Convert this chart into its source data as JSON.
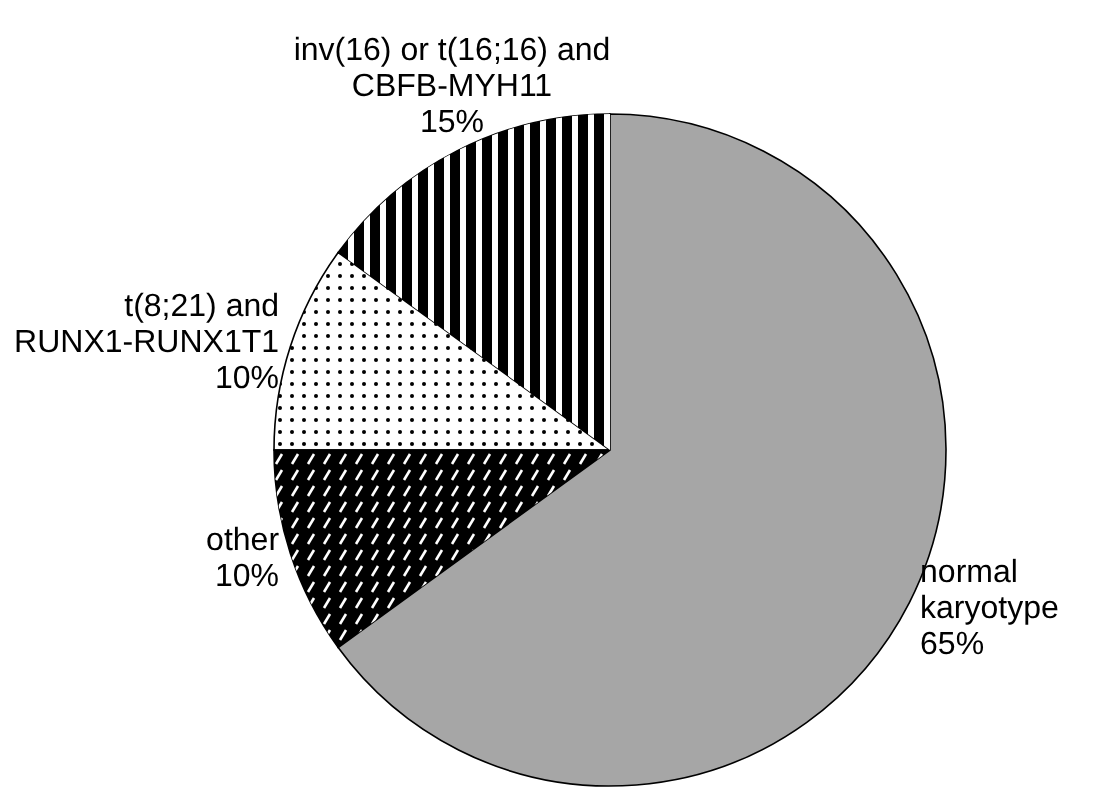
{
  "chart_data": {
    "type": "pie",
    "categories": [
      "inv(16) or t(16;16) and CBFB-MYH11",
      "t(8;21) and RUNX1-RUNX1T1",
      "other",
      "normal karyotype"
    ],
    "values": [
      15,
      10,
      10,
      65
    ],
    "colors": [
      "#000000",
      "#ffffff",
      "#000000",
      "#a6a6a6"
    ],
    "value_labels": [
      "15%",
      "10%",
      "10%",
      "65%"
    ]
  }
}
